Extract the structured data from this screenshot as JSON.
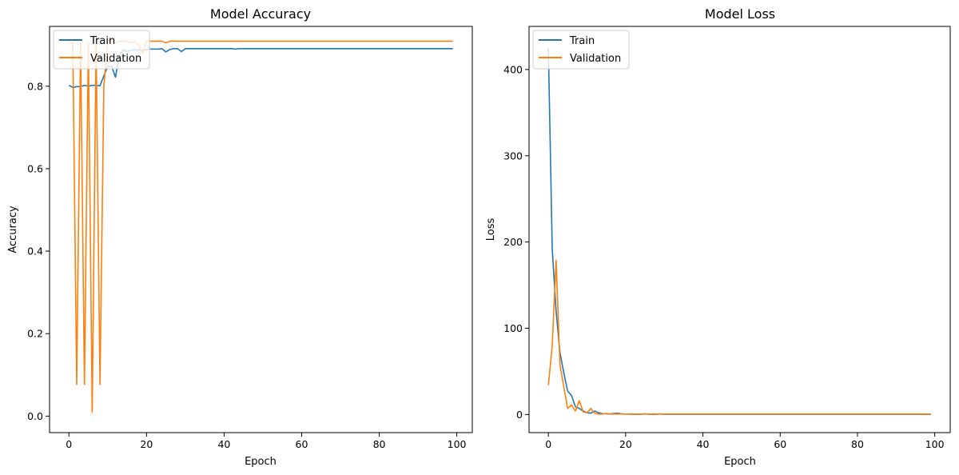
{
  "colors": {
    "train": "#1f77b4",
    "validation": "#ff7f0e",
    "legend_border": "#cccccc"
  },
  "chart_data": [
    {
      "type": "line",
      "title": "Model Accuracy",
      "xlabel": "Epoch",
      "ylabel": "Accuracy",
      "xlim": [
        -5,
        104
      ],
      "ylim": [
        -0.04,
        0.945
      ],
      "xticks": [
        0,
        20,
        40,
        60,
        80,
        100
      ],
      "yticks": [
        0.0,
        0.2,
        0.4,
        0.6,
        0.8
      ],
      "ytick_decimals": 1,
      "grid": false,
      "legend_position": "top-left",
      "series": [
        {
          "name": "Train",
          "color": "#1f77b4",
          "x": [
            0,
            1,
            2,
            3,
            4,
            5,
            6,
            7,
            8,
            9,
            10,
            11,
            12,
            13,
            14,
            15,
            16,
            17,
            18,
            19,
            20,
            21,
            22,
            23,
            24,
            25,
            26,
            27,
            28,
            29,
            30,
            31,
            32,
            33,
            34,
            35,
            36,
            37,
            38,
            39,
            40,
            41,
            42,
            43,
            44,
            45,
            46,
            47,
            48,
            49,
            50,
            51,
            52,
            53,
            54,
            55,
            56,
            57,
            58,
            59,
            60,
            61,
            62,
            63,
            64,
            65,
            66,
            67,
            68,
            69,
            70,
            71,
            72,
            73,
            74,
            75,
            76,
            77,
            78,
            79,
            80,
            81,
            82,
            83,
            84,
            85,
            86,
            87,
            88,
            89,
            90,
            91,
            92,
            93,
            94,
            95,
            96,
            97,
            98,
            99
          ],
          "y": [
            0.802,
            0.797,
            0.799,
            0.799,
            0.802,
            0.8,
            0.802,
            0.802,
            0.801,
            0.825,
            0.848,
            0.848,
            0.822,
            0.875,
            0.888,
            0.884,
            0.887,
            0.888,
            0.888,
            0.887,
            0.889,
            0.89,
            0.89,
            0.89,
            0.891,
            0.883,
            0.889,
            0.891,
            0.891,
            0.884,
            0.891,
            0.891,
            0.891,
            0.891,
            0.891,
            0.891,
            0.891,
            0.891,
            0.891,
            0.891,
            0.891,
            0.891,
            0.891,
            0.89,
            0.891,
            0.891,
            0.891,
            0.891,
            0.891,
            0.891,
            0.891,
            0.891,
            0.891,
            0.891,
            0.891,
            0.891,
            0.891,
            0.891,
            0.891,
            0.891,
            0.891,
            0.891,
            0.891,
            0.891,
            0.891,
            0.891,
            0.891,
            0.891,
            0.891,
            0.891,
            0.891,
            0.891,
            0.891,
            0.891,
            0.891,
            0.891,
            0.891,
            0.891,
            0.891,
            0.891,
            0.891,
            0.891,
            0.891,
            0.891,
            0.891,
            0.891,
            0.891,
            0.891,
            0.891,
            0.891,
            0.891,
            0.891,
            0.891,
            0.891,
            0.891,
            0.891,
            0.891,
            0.891,
            0.891,
            0.891
          ]
        },
        {
          "name": "Validation",
          "color": "#ff7f0e",
          "x": [
            0,
            1,
            2,
            3,
            4,
            5,
            6,
            7,
            8,
            9,
            10,
            11,
            12,
            13,
            14,
            15,
            16,
            17,
            18,
            19,
            20,
            21,
            22,
            23,
            24,
            25,
            26,
            27,
            28,
            29,
            30,
            31,
            32,
            33,
            34,
            35,
            36,
            37,
            38,
            39,
            40,
            41,
            42,
            43,
            44,
            45,
            46,
            47,
            48,
            49,
            50,
            51,
            52,
            53,
            54,
            55,
            56,
            57,
            58,
            59,
            60,
            61,
            62,
            63,
            64,
            65,
            66,
            67,
            68,
            69,
            70,
            71,
            72,
            73,
            74,
            75,
            76,
            77,
            78,
            79,
            80,
            81,
            82,
            83,
            84,
            85,
            86,
            87,
            88,
            89,
            90,
            91,
            92,
            93,
            94,
            95,
            96,
            97,
            98,
            99
          ],
          "y": [
            0.905,
            0.905,
            0.077,
            0.905,
            0.077,
            0.905,
            0.009,
            0.905,
            0.077,
            0.8,
            0.909,
            0.909,
            0.905,
            0.909,
            0.909,
            0.909,
            0.905,
            0.909,
            0.9,
            0.88,
            0.909,
            0.909,
            0.909,
            0.909,
            0.909,
            0.905,
            0.909,
            0.909,
            0.909,
            0.909,
            0.909,
            0.909,
            0.909,
            0.909,
            0.909,
            0.909,
            0.909,
            0.909,
            0.909,
            0.909,
            0.909,
            0.909,
            0.909,
            0.909,
            0.909,
            0.909,
            0.909,
            0.909,
            0.909,
            0.909,
            0.909,
            0.909,
            0.909,
            0.909,
            0.909,
            0.909,
            0.909,
            0.909,
            0.909,
            0.909,
            0.909,
            0.909,
            0.909,
            0.909,
            0.909,
            0.909,
            0.909,
            0.909,
            0.909,
            0.909,
            0.909,
            0.909,
            0.909,
            0.909,
            0.909,
            0.909,
            0.909,
            0.909,
            0.909,
            0.909,
            0.909,
            0.909,
            0.909,
            0.909,
            0.909,
            0.909,
            0.909,
            0.909,
            0.909,
            0.909,
            0.909,
            0.909,
            0.909,
            0.909,
            0.909,
            0.909,
            0.909,
            0.909,
            0.909,
            0.909
          ]
        }
      ]
    },
    {
      "type": "line",
      "title": "Model Loss",
      "xlabel": "Epoch",
      "ylabel": "Loss",
      "xlim": [
        -5,
        104
      ],
      "ylim": [
        -21,
        450
      ],
      "xticks": [
        0,
        20,
        40,
        60,
        80,
        100
      ],
      "yticks": [
        0,
        100,
        200,
        300,
        400
      ],
      "ytick_decimals": 0,
      "grid": false,
      "legend_position": "top-left",
      "series": [
        {
          "name": "Train",
          "color": "#1f77b4",
          "x": [
            0,
            1,
            2,
            3,
            4,
            5,
            6,
            7,
            8,
            9,
            10,
            11,
            12,
            13,
            14,
            15,
            16,
            17,
            18,
            19,
            20,
            21,
            22,
            23,
            24,
            25,
            26,
            27,
            28,
            29,
            30,
            31,
            32,
            33,
            34,
            35,
            36,
            37,
            38,
            39,
            40,
            41,
            42,
            43,
            44,
            45,
            46,
            47,
            48,
            49,
            50,
            51,
            52,
            53,
            54,
            55,
            56,
            57,
            58,
            59,
            60,
            61,
            62,
            63,
            64,
            65,
            66,
            67,
            68,
            69,
            70,
            71,
            72,
            73,
            74,
            75,
            76,
            77,
            78,
            79,
            80,
            81,
            82,
            83,
            84,
            85,
            86,
            87,
            88,
            89,
            90,
            91,
            92,
            93,
            94,
            95,
            96,
            97,
            98,
            99
          ],
          "y": [
            425,
            192,
            120,
            72,
            48,
            27,
            22,
            9,
            7,
            4,
            2,
            1.5,
            4,
            2,
            1,
            0.8,
            0.6,
            1.2,
            1.5,
            0.7,
            0.5,
            0.4,
            0.3,
            0.3,
            0.3,
            0.9,
            0.3,
            0.3,
            0.3,
            0.8,
            0.3,
            0.2,
            0.2,
            0.2,
            0.2,
            0.2,
            0.2,
            0.2,
            0.2,
            0.2,
            0.2,
            0.2,
            0.2,
            0.2,
            0.2,
            0.2,
            0.2,
            0.2,
            0.2,
            0.2,
            0.2,
            0.2,
            0.2,
            0.2,
            0.2,
            0.2,
            0.2,
            0.2,
            0.2,
            0.2,
            0.2,
            0.2,
            0.2,
            0.2,
            0.2,
            0.2,
            0.2,
            0.2,
            0.2,
            0.2,
            0.2,
            0.2,
            0.2,
            0.2,
            0.2,
            0.2,
            0.2,
            0.2,
            0.2,
            0.2,
            0.2,
            0.2,
            0.2,
            0.2,
            0.2,
            0.2,
            0.2,
            0.2,
            0.2,
            0.2,
            0.2,
            0.2,
            0.2,
            0.2,
            0.2,
            0.2,
            0.2,
            0.2,
            0.2,
            0.2
          ]
        },
        {
          "name": "Validation",
          "color": "#ff7f0e",
          "x": [
            0,
            1,
            2,
            3,
            4,
            5,
            6,
            7,
            8,
            9,
            10,
            11,
            12,
            13,
            14,
            15,
            16,
            17,
            18,
            19,
            20,
            21,
            22,
            23,
            24,
            25,
            26,
            27,
            28,
            29,
            30,
            31,
            32,
            33,
            34,
            35,
            36,
            37,
            38,
            39,
            40,
            41,
            42,
            43,
            44,
            45,
            46,
            47,
            48,
            49,
            50,
            51,
            52,
            53,
            54,
            55,
            56,
            57,
            58,
            59,
            60,
            61,
            62,
            63,
            64,
            65,
            66,
            67,
            68,
            69,
            70,
            71,
            72,
            73,
            74,
            75,
            76,
            77,
            78,
            79,
            80,
            81,
            82,
            83,
            84,
            85,
            86,
            87,
            88,
            89,
            90,
            91,
            92,
            93,
            94,
            95,
            96,
            97,
            98,
            99
          ],
          "y": [
            34,
            80,
            179,
            58,
            32,
            7,
            11,
            4,
            16,
            3,
            2,
            7,
            1.5,
            0.5,
            0.5,
            1.2,
            0.5,
            0.5,
            0.5,
            0.5,
            0.5,
            0.5,
            0.5,
            0.5,
            0.5,
            0.5,
            0.5,
            0.5,
            0.5,
            0.5,
            0.5,
            0.5,
            0.5,
            0.5,
            0.5,
            0.5,
            0.5,
            0.5,
            0.5,
            0.5,
            0.5,
            0.5,
            0.5,
            0.5,
            0.5,
            0.5,
            0.5,
            0.5,
            0.5,
            0.5,
            0.5,
            0.5,
            0.5,
            0.5,
            0.5,
            0.5,
            0.5,
            0.5,
            0.5,
            0.5,
            0.5,
            0.5,
            0.5,
            0.5,
            0.5,
            0.5,
            0.5,
            0.5,
            0.5,
            0.5,
            0.5,
            0.5,
            0.5,
            0.5,
            0.5,
            0.5,
            0.5,
            0.5,
            0.5,
            0.5,
            0.5,
            0.5,
            0.5,
            0.5,
            0.5,
            0.5,
            0.5,
            0.5,
            0.5,
            0.5,
            0.5,
            0.5,
            0.5,
            0.5,
            0.5,
            0.5,
            0.5,
            0.5,
            0.5,
            0.5
          ]
        }
      ]
    }
  ]
}
